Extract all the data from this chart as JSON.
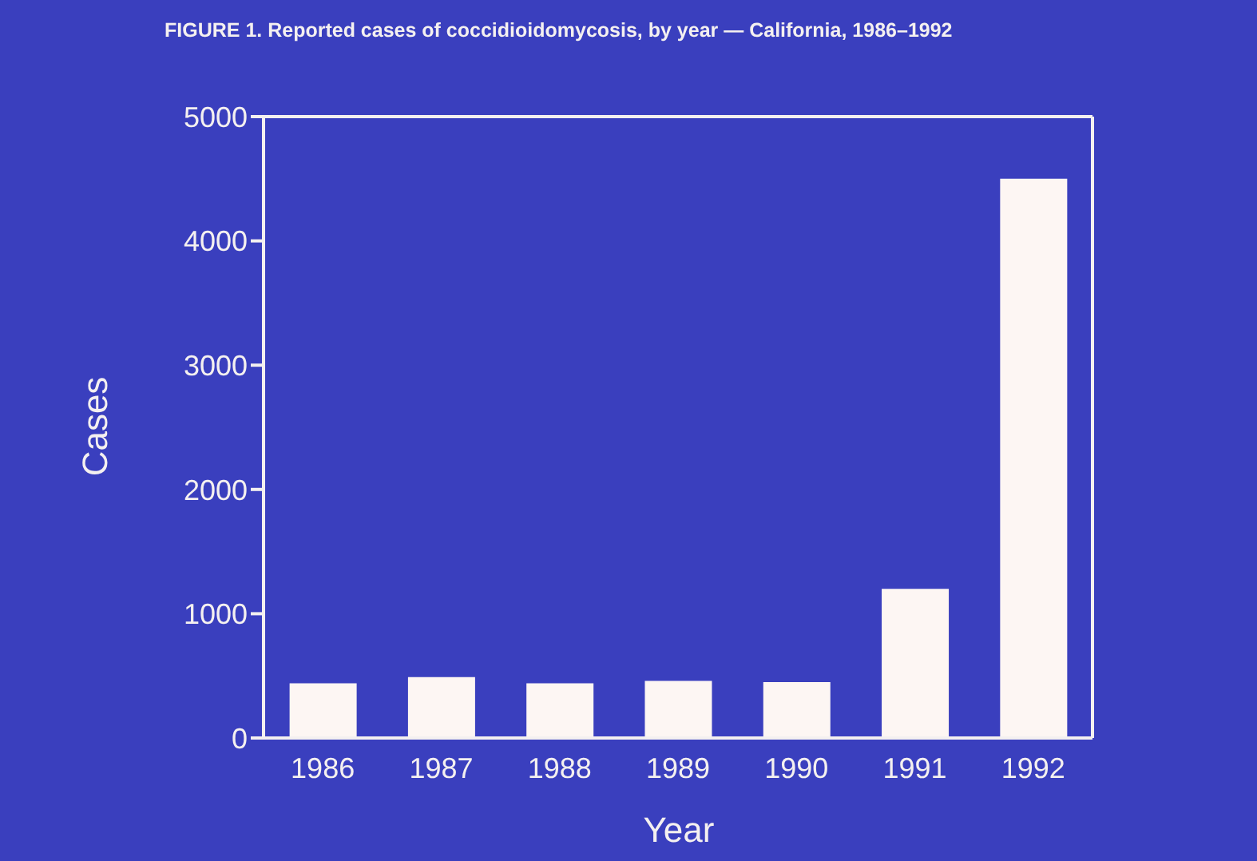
{
  "chart_data": {
    "type": "bar",
    "title": "FIGURE 1. Reported cases of coccidioidomycosis, by year — California, 1986–1992",
    "xlabel": "Year",
    "ylabel": "Cases",
    "categories": [
      "1986",
      "1987",
      "1988",
      "1989",
      "1990",
      "1991",
      "1992"
    ],
    "values": [
      440,
      490,
      440,
      460,
      450,
      1200,
      4500
    ],
    "color": "#fdf6f3",
    "ylim": [
      0,
      5000
    ],
    "yticks": [
      0,
      1000,
      2000,
      3000,
      4000,
      5000
    ]
  }
}
